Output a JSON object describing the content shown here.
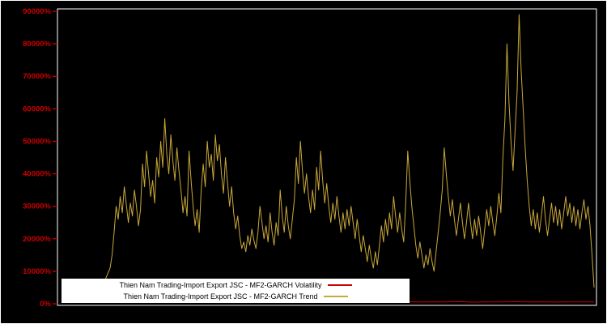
{
  "figure": {
    "background": "#000000",
    "border_color": "#ffffff"
  },
  "axis": {
    "tick_color": "#cc0000",
    "label_color": "#cc0000"
  },
  "chart_data": {
    "type": "line",
    "title": "",
    "xlabel": "",
    "ylabel": "",
    "ylim": [
      0,
      90000
    ],
    "y_unit": "%",
    "grid": false,
    "legend_position": "bottom-left",
    "yticks": [
      0,
      10000,
      20000,
      30000,
      40000,
      50000,
      60000,
      70000,
      80000,
      90000
    ],
    "ytick_labels": [
      "0%",
      "10000%",
      "20000%",
      "30000%",
      "40000%",
      "50000%",
      "60000%",
      "70000%",
      "80000%",
      "90000%"
    ],
    "legend": [
      {
        "label": "Thien Nam Trading-Import Export JSC - MF2-GARCH Volatility",
        "color": "#cc0000"
      },
      {
        "label": "Thien Nam Trading-Import Export JSC - MF2-GARCH Trend",
        "color": "#c9a83a"
      }
    ],
    "series": [
      {
        "id": "volatility",
        "name": "Thien Nam Trading-Import Export JSC - MF2-GARCH Volatility",
        "color": "#cc0000",
        "values": [
          400,
          600,
          500,
          700,
          550,
          650,
          480,
          600,
          520,
          700,
          580,
          640,
          500,
          620,
          560,
          680,
          540,
          600,
          480,
          650,
          560,
          620,
          500,
          580,
          540,
          660,
          520,
          600,
          560,
          640,
          500,
          580,
          540,
          620,
          560,
          600,
          520,
          580,
          540,
          560
        ]
      },
      {
        "id": "trend",
        "name": "Thien Nam Trading-Import Export JSC - MF2-GARCH Trend",
        "color": "#c9a83a",
        "values": [
          300,
          500,
          400,
          600,
          800,
          700,
          900,
          1200,
          1000,
          1500,
          2000,
          1800,
          2500,
          3000,
          2800,
          4000,
          5000,
          6500,
          8000,
          9500,
          11000,
          15000,
          22000,
          30000,
          26000,
          33000,
          28000,
          36000,
          30500,
          25000,
          31000,
          27000,
          35000,
          30000,
          24000,
          29000,
          43000,
          36000,
          47000,
          40000,
          33000,
          38000,
          31000,
          45000,
          39000,
          50000,
          42000,
          57000,
          46000,
          40000,
          52000,
          44000,
          38000,
          48000,
          41000,
          35000,
          28000,
          33000,
          27000,
          47000,
          38000,
          30000,
          24000,
          29000,
          22000,
          35000,
          43000,
          36000,
          50000,
          42000,
          46000,
          38000,
          52000,
          44000,
          49000,
          40000,
          34000,
          45000,
          37000,
          30000,
          36000,
          28000,
          23000,
          27000,
          21000,
          17000,
          19000,
          16000,
          21000,
          18000,
          23000,
          19500,
          17000,
          22000,
          30000,
          25000,
          20000,
          24000,
          19000,
          28000,
          22000,
          18000,
          25000,
          21000,
          35000,
          27000,
          22000,
          30000,
          24000,
          20000,
          26000,
          32000,
          45000,
          37000,
          50000,
          41000,
          34000,
          40000,
          33000,
          28000,
          35000,
          29000,
          42000,
          35000,
          47000,
          38000,
          31000,
          37000,
          30000,
          25000,
          31000,
          26000,
          33000,
          27000,
          22000,
          28000,
          23000,
          29000,
          24000,
          30000,
          25000,
          20000,
          26000,
          21000,
          16000,
          21000,
          17000,
          13000,
          18000,
          14000,
          11000,
          16000,
          12000,
          18000,
          24000,
          19000,
          26000,
          21000,
          28000,
          23000,
          33000,
          27000,
          22000,
          28000,
          23000,
          19000,
          31000,
          47000,
          38000,
          30000,
          24000,
          18000,
          14000,
          19000,
          15000,
          11000,
          15000,
          12000,
          17000,
          13000,
          10000,
          16000,
          22000,
          28000,
          35000,
          48000,
          40000,
          33000,
          27000,
          32000,
          26000,
          21000,
          26000,
          31000,
          25000,
          20000,
          25000,
          31000,
          25000,
          20000,
          26000,
          21000,
          27000,
          22000,
          17000,
          23000,
          29000,
          24000,
          30000,
          25000,
          21000,
          27000,
          34000,
          28000,
          45000,
          57000,
          80000,
          62000,
          50000,
          41000,
          53000,
          65000,
          89000,
          72000,
          60000,
          48000,
          38000,
          30000,
          24000,
          29000,
          23000,
          28000,
          22000,
          27000,
          33000,
          26000,
          21000,
          26000,
          31000,
          25000,
          30000,
          24000,
          29000,
          23000,
          28000,
          33000,
          27000,
          31000,
          25000,
          30000,
          24000,
          29000,
          23000,
          28000,
          32000,
          26000,
          30000,
          24000,
          15000,
          5000
        ]
      }
    ]
  }
}
